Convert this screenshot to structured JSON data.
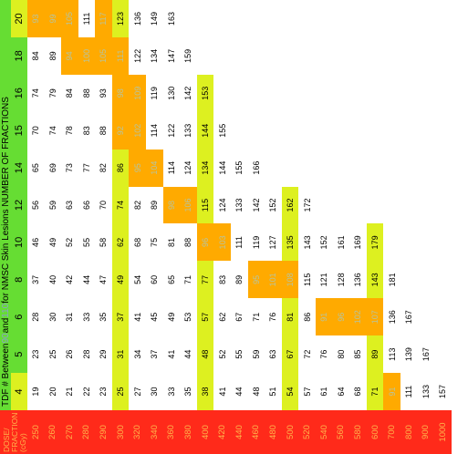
{
  "table": {
    "title": {
      "part1": "TDF # Between ",
      "lo": "90",
      "mid": " and ",
      "hi": "110",
      "part2": " for NMSC Skin Lesions NUMBER OF FRACTIONS"
    },
    "corner_label": [
      "DOSE/",
      "FRACTION",
      "(cGy)"
    ],
    "fractions": [
      "4",
      "5",
      "6",
      "8",
      "10",
      "12",
      "14",
      "15",
      "16",
      "18",
      "20"
    ],
    "doses": [
      "250",
      "260",
      "270",
      "280",
      "290",
      "300",
      "320",
      "340",
      "360",
      "380",
      "400",
      "420",
      "440",
      "460",
      "480",
      "500",
      "520",
      "540",
      "560",
      "580",
      "600",
      "700",
      "800",
      "900",
      "1000"
    ],
    "rows": [
      [
        "19",
        "23",
        "28",
        "37",
        "46",
        "56",
        "65",
        "70",
        "74",
        "84",
        "93"
      ],
      [
        "20",
        "25",
        "30",
        "40",
        "49",
        "59",
        "69",
        "74",
        "79",
        "89",
        "99"
      ],
      [
        "21",
        "26",
        "31",
        "42",
        "52",
        "63",
        "73",
        "78",
        "84",
        "94",
        "105"
      ],
      [
        "22",
        "28",
        "33",
        "44",
        "55",
        "66",
        "77",
        "83",
        "88",
        "100",
        "111"
      ],
      [
        "23",
        "29",
        "35",
        "47",
        "58",
        "70",
        "82",
        "88",
        "93",
        "105",
        "117"
      ],
      [
        "25",
        "31",
        "37",
        "49",
        "62",
        "74",
        "86",
        "92",
        "98",
        "111",
        "123"
      ],
      [
        "27",
        "34",
        "41",
        "54",
        "68",
        "82",
        "95",
        "102",
        "109",
        "122",
        "136"
      ],
      [
        "30",
        "37",
        "45",
        "60",
        "75",
        "89",
        "104",
        "114",
        "119",
        "134",
        "149"
      ],
      [
        "33",
        "41",
        "49",
        "65",
        "81",
        "98",
        "114",
        "122",
        "130",
        "147",
        "163"
      ],
      [
        "35",
        "44",
        "53",
        "71",
        "88",
        "106",
        "124",
        "133",
        "142",
        "159",
        ""
      ],
      [
        "38",
        "48",
        "57",
        "77",
        "96",
        "115",
        "134",
        "144",
        "153",
        "",
        ""
      ],
      [
        "41",
        "52",
        "62",
        "83",
        "103",
        "124",
        "144",
        "155",
        "",
        "",
        ""
      ],
      [
        "44",
        "55",
        "67",
        "89",
        "111",
        "133",
        "155",
        "",
        "",
        "",
        ""
      ],
      [
        "48",
        "59",
        "71",
        "95",
        "119",
        "142",
        "166",
        "",
        "",
        "",
        ""
      ],
      [
        "51",
        "63",
        "76",
        "101",
        "127",
        "152",
        "",
        "",
        "",
        "",
        ""
      ],
      [
        "54",
        "67",
        "81",
        "108",
        "135",
        "162",
        "",
        "",
        "",
        "",
        ""
      ],
      [
        "57",
        "72",
        "86",
        "115",
        "143",
        "172",
        "",
        "",
        "",
        "",
        ""
      ],
      [
        "61",
        "76",
        "91",
        "121",
        "152",
        "",
        "",
        "",
        "",
        "",
        ""
      ],
      [
        "64",
        "80",
        "96",
        "128",
        "161",
        "",
        "",
        "",
        "",
        "",
        ""
      ],
      [
        "68",
        "85",
        "102",
        "136",
        "169",
        "",
        "",
        "",
        "",
        "",
        ""
      ],
      [
        "71",
        "89",
        "107",
        "143",
        "179",
        "",
        "",
        "",
        "",
        "",
        ""
      ],
      [
        "91",
        "113",
        "136",
        "181",
        "",
        "",
        "",
        "",
        "",
        "",
        ""
      ],
      [
        "111",
        "139",
        "167",
        "",
        "",
        "",
        "",
        "",
        "",
        "",
        ""
      ],
      [
        "133",
        "167",
        "",
        "",
        "",
        "",
        "",
        "",
        "",
        "",
        ""
      ],
      [
        "157",
        "",
        "",
        "",
        "",
        "",
        "",
        "",
        "",
        "",
        ""
      ]
    ],
    "colors": {
      "green": "#66dd33",
      "yellow": "#ddf020",
      "orange": "#ffaa00",
      "red": "#ff2a1a"
    }
  }
}
